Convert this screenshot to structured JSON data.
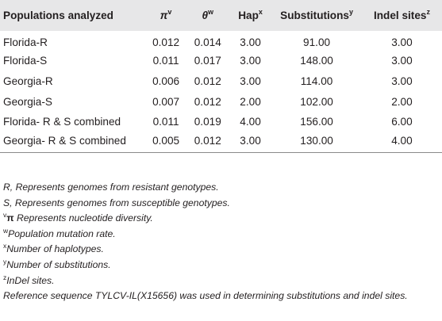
{
  "table": {
    "headers": [
      {
        "text": "Populations analyzed",
        "sup": ""
      },
      {
        "text": "π",
        "sup": "v"
      },
      {
        "text": "θ",
        "sup": "w"
      },
      {
        "text": "Hap",
        "sup": "x"
      },
      {
        "text": "Substitutions",
        "sup": "y"
      },
      {
        "text": "Indel sites",
        "sup": "z"
      }
    ],
    "rows": [
      [
        "Florida-R",
        "0.012",
        "0.014",
        "3.00",
        "91.00",
        "3.00"
      ],
      [
        "Florida-S",
        "0.011",
        "0.017",
        "3.00",
        "148.00",
        "3.00"
      ],
      [
        "Georgia-R",
        "0.006",
        "0.012",
        "3.00",
        "114.00",
        "3.00"
      ],
      [
        "Georgia-S",
        "0.007",
        "0.012",
        "2.00",
        "102.00",
        "2.00"
      ],
      [
        "Florida- R & S combined",
        "0.011",
        "0.019",
        "4.00",
        "156.00",
        "6.00"
      ],
      [
        "Georgia- R & S combined",
        "0.005",
        "0.012",
        "3.00",
        "130.00",
        "4.00"
      ]
    ]
  },
  "footnotes": {
    "r": "R, Represents genomes from resistant genotypes.",
    "s": "S, Represents genomes from susceptible genotypes.",
    "v": {
      "marker": "v",
      "symbol": "π",
      "text": " Represents nucleotide diversity."
    },
    "w": {
      "marker": "w",
      "text": "Population mutation rate."
    },
    "x": {
      "marker": "x",
      "text": "Number of haplotypes."
    },
    "y": {
      "marker": "y",
      "text": "Number of substitutions."
    },
    "z": {
      "marker": "z",
      "text": "InDel sites."
    },
    "reference": "Reference sequence TYLCV-IL(X15656) was used in determining substitutions and indel sites."
  }
}
